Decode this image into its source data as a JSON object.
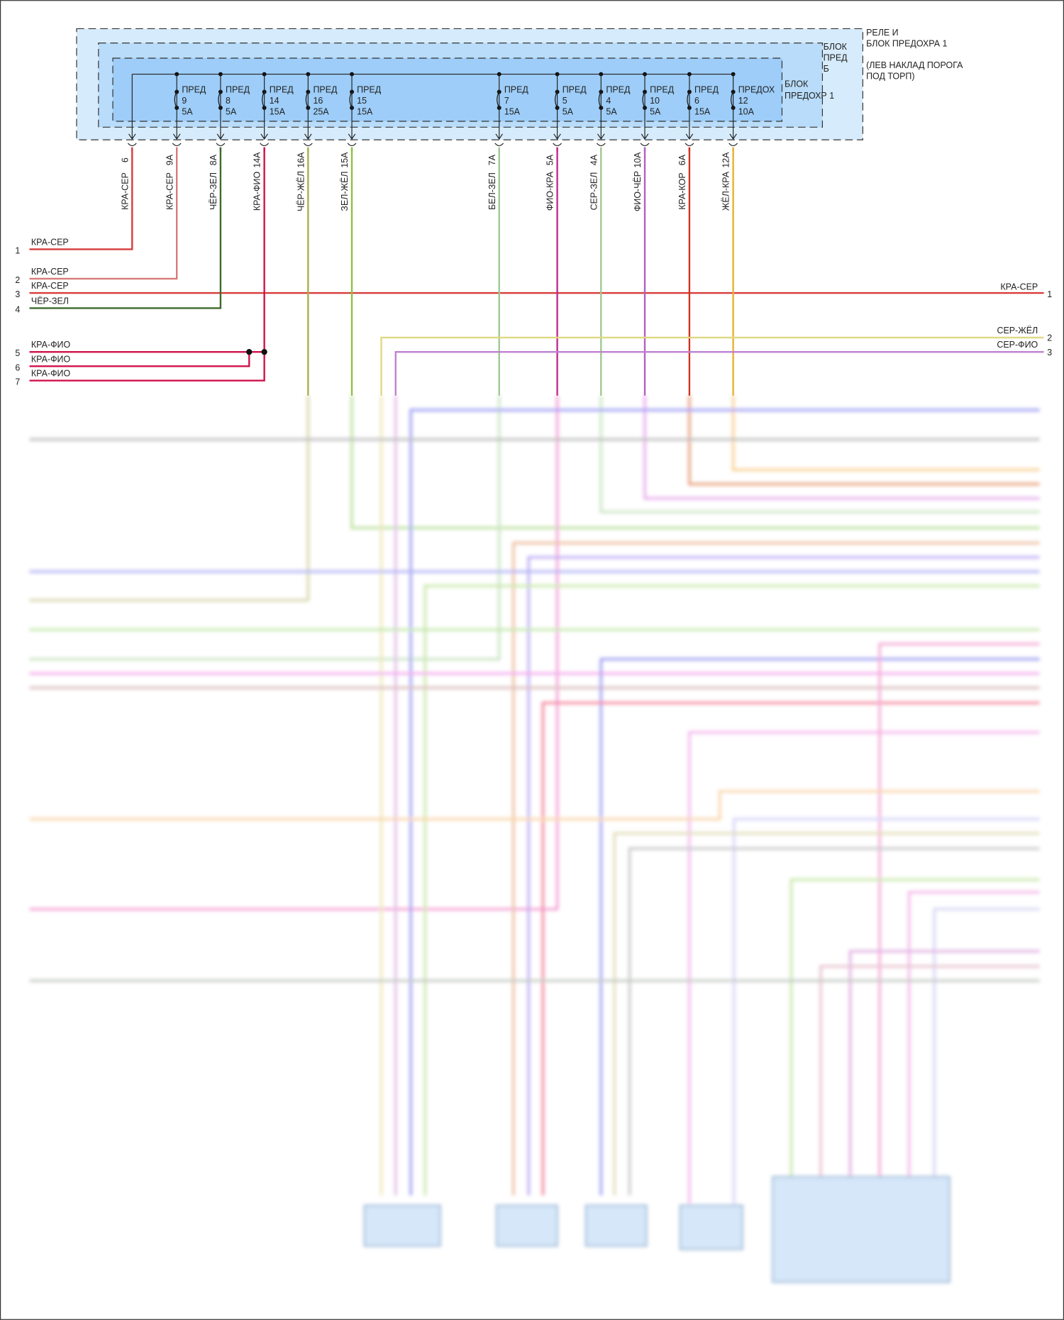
{
  "relay_block": {
    "title_line1": "РЕЛЕ И",
    "title_line2": "БЛОК ПРЕДОХРА 1",
    "location_line1": "(ЛЕВ НАКЛАД ПОРОГА",
    "location_line2": "ПОД ТОРП)",
    "middle_block_line1": "БЛОК",
    "middle_block_line2": "ПРЕД",
    "middle_block_line3": "Б",
    "inner_block_line1": "БЛОК",
    "inner_block_line2": "ПРЕДОХР 1"
  },
  "fuses": [
    {
      "label": "ПРЕД",
      "number": "9",
      "rating": "5A"
    },
    {
      "label": "ПРЕД",
      "number": "8",
      "rating": "5A"
    },
    {
      "label": "ПРЕД",
      "number": "14",
      "rating": "15A"
    },
    {
      "label": "ПРЕД",
      "number": "16",
      "rating": "25A"
    },
    {
      "label": "ПРЕД",
      "number": "15",
      "rating": "15A"
    },
    {
      "label": "ПРЕД",
      "number": "7",
      "rating": "15A"
    },
    {
      "label": "ПРЕД",
      "number": "5",
      "rating": "5A"
    },
    {
      "label": "ПРЕД",
      "number": "4",
      "rating": "5A"
    },
    {
      "label": "ПРЕД",
      "number": "10",
      "rating": "5A"
    },
    {
      "label": "ПРЕД",
      "number": "6",
      "rating": "15A"
    },
    {
      "label": "ПРЕДОХ",
      "number": "12",
      "rating": "10A"
    }
  ],
  "outputs": [
    {
      "pin": "6",
      "wire": "КРА-СЕР",
      "color": "#d83a3a"
    },
    {
      "pin": "9A",
      "wire": "КРА-СЕР",
      "color": "#d87a7a"
    },
    {
      "pin": "8A",
      "wire": "ЧЁР-ЗЕЛ",
      "color": "#3c6a2c"
    },
    {
      "pin": "14A",
      "wire": "КРА-ФИО",
      "color": "#d0104a"
    },
    {
      "pin": "16A",
      "wire": "ЧЁР-ЖЁЛ",
      "color": "#a8b048"
    },
    {
      "pin": "15A",
      "wire": "ЗЕЛ-ЖЁЛ",
      "color": "#8cc040"
    },
    {
      "pin": "7A",
      "wire": "БЕЛ-ЗЕЛ",
      "color": "#9cc890"
    },
    {
      "pin": "5A",
      "wire": "ФИО-КРА",
      "color": "#c02890"
    },
    {
      "pin": "4A",
      "wire": "СЕР-ЗЕЛ",
      "color": "#a0c890"
    },
    {
      "pin": "10A",
      "wire": "ФИО-ЧЁР",
      "color": "#b060c0"
    },
    {
      "pin": "6A",
      "wire": "КРА-КОР",
      "color": "#d03020"
    },
    {
      "pin": "12A",
      "wire": "ЖЁЛ-КРА",
      "color": "#e8b030"
    }
  ],
  "left_connector": [
    {
      "pin": "1",
      "wire": "КРА-СЕР"
    },
    {
      "pin": "2",
      "wire": "КРА-СЕР"
    },
    {
      "pin": "3",
      "wire": "КРА-СЕР"
    },
    {
      "pin": "4",
      "wire": "ЧЁР-ЗЕЛ"
    },
    {
      "pin": "5",
      "wire": "КРА-ФИО"
    },
    {
      "pin": "6",
      "wire": "КРА-ФИО"
    },
    {
      "pin": "7",
      "wire": "КРА-ФИО"
    }
  ],
  "right_connector": [
    {
      "pin": "1",
      "wire": "КРА-СЕР"
    },
    {
      "pin": "2",
      "wire": "СЕР-ЖЁЛ"
    },
    {
      "pin": "3",
      "wire": "СЕР-ФИО"
    }
  ]
}
